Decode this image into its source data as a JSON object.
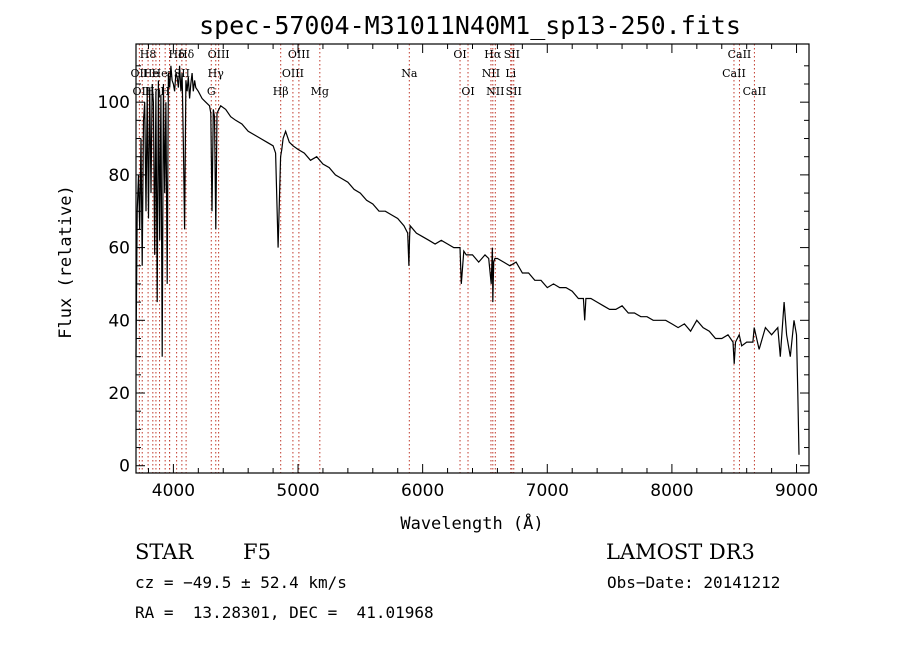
{
  "chart_data": {
    "type": "line",
    "title": "spec-57004-M31011N40M1_sp13-250.fits",
    "xlabel": "Wavelength (Å)",
    "ylabel": "Flux (relative)",
    "xlim": [
      3700,
      9100
    ],
    "ylim": [
      -2,
      116
    ],
    "xticks": [
      4000,
      5000,
      6000,
      7000,
      8000,
      9000
    ],
    "yticks": [
      0,
      20,
      40,
      60,
      80,
      100
    ],
    "series": [
      {
        "name": "spectrum",
        "color": "#000000",
        "x": [
          3700,
          3710,
          3720,
          3730,
          3740,
          3750,
          3760,
          3770,
          3780,
          3790,
          3800,
          3810,
          3820,
          3830,
          3840,
          3850,
          3860,
          3870,
          3880,
          3890,
          3900,
          3910,
          3920,
          3930,
          3940,
          3950,
          3960,
          3970,
          3980,
          3990,
          4000,
          4010,
          4020,
          4030,
          4040,
          4050,
          4060,
          4070,
          4080,
          4090,
          4100,
          4110,
          4120,
          4130,
          4140,
          4150,
          4160,
          4170,
          4180,
          4200,
          4230,
          4260,
          4290,
          4300,
          4310,
          4320,
          4330,
          4340,
          4350,
          4380,
          4420,
          4460,
          4500,
          4550,
          4600,
          4650,
          4700,
          4750,
          4800,
          4820,
          4840,
          4850,
          4860,
          4870,
          4880,
          4900,
          4930,
          4960,
          5000,
          5050,
          5100,
          5150,
          5200,
          5250,
          5300,
          5350,
          5400,
          5450,
          5500,
          5550,
          5600,
          5650,
          5700,
          5750,
          5800,
          5850,
          5880,
          5890,
          5895,
          5900,
          5950,
          6000,
          6050,
          6100,
          6150,
          6200,
          6250,
          6300,
          6310,
          6330,
          6350,
          6400,
          6450,
          6500,
          6530,
          6550,
          6560,
          6563,
          6570,
          6580,
          6600,
          6650,
          6700,
          6750,
          6800,
          6850,
          6900,
          6950,
          7000,
          7050,
          7100,
          7150,
          7200,
          7250,
          7290,
          7300,
          7310,
          7350,
          7400,
          7450,
          7500,
          7550,
          7600,
          7650,
          7700,
          7750,
          7800,
          7850,
          7900,
          7950,
          8000,
          8050,
          8100,
          8150,
          8200,
          8250,
          8300,
          8350,
          8400,
          8450,
          8490,
          8500,
          8510,
          8540,
          8560,
          8600,
          8650,
          8660,
          8700,
          8750,
          8800,
          8850,
          8870,
          8900,
          8920,
          8950,
          8980,
          9000,
          9010,
          9020
        ],
        "y": [
          30,
          70,
          80,
          65,
          90,
          55,
          95,
          100,
          70,
          102,
          68,
          104,
          75,
          105,
          100,
          58,
          103,
          45,
          106,
          62,
          102,
          30,
          105,
          75,
          100,
          50,
          108,
          104,
          110,
          106,
          105,
          103,
          108,
          107,
          104,
          110,
          103,
          108,
          88,
          65,
          106,
          103,
          107,
          101,
          105,
          108,
          103,
          106,
          104,
          103,
          101,
          100,
          99,
          97,
          70,
          98,
          96,
          65,
          97,
          99,
          98,
          96,
          95,
          94,
          92,
          91,
          90,
          89,
          88,
          86,
          60,
          72,
          85,
          87,
          90,
          92,
          89,
          88,
          87,
          86,
          84,
          85,
          83,
          82,
          80,
          79,
          78,
          76,
          75,
          73,
          72,
          70,
          70,
          69,
          68,
          66,
          64,
          55,
          63,
          66,
          64,
          63,
          62,
          61,
          62,
          61,
          60,
          60,
          50,
          59,
          58,
          58,
          56,
          58,
          57,
          50,
          60,
          45,
          56,
          57,
          57,
          56,
          55,
          56,
          53,
          53,
          51,
          51,
          49,
          50,
          49,
          49,
          48,
          46,
          46,
          40,
          46,
          46,
          45,
          44,
          43,
          43,
          44,
          42,
          42,
          41,
          41,
          40,
          40,
          40,
          39,
          38,
          39,
          37,
          40,
          38,
          37,
          35,
          35,
          36,
          34,
          28,
          34,
          36,
          33,
          34,
          34,
          38,
          32,
          38,
          36,
          38,
          30,
          45,
          36,
          30,
          40,
          36,
          20,
          3
        ]
      }
    ],
    "lines_top": [
      {
        "wl": 3934,
        "label": "K"
      },
      {
        "wl": 3969,
        "label": "H"
      },
      {
        "wl": 4102,
        "label": "Hδ"
      },
      {
        "wl": 4363,
        "label": "OIII"
      },
      {
        "wl": 4340,
        "label": "Hγ"
      },
      {
        "wl": 5007,
        "label": "OIII"
      },
      {
        "wl": 4959,
        "label": "OIII"
      },
      {
        "wl": 4861,
        "label": "Hβ"
      },
      {
        "wl": 5175,
        "label": "Mg"
      },
      {
        "wl": 5893,
        "label": "Na"
      },
      {
        "wl": 6300,
        "label": "OI"
      },
      {
        "wl": 6364,
        "label": "OI"
      },
      {
        "wl": 6563,
        "label": "Hα"
      },
      {
        "wl": 6548,
        "label": "NII"
      },
      {
        "wl": 6583,
        "label": "NII"
      },
      {
        "wl": 6716,
        "label": "SII"
      },
      {
        "wl": 6707,
        "label": "Li"
      },
      {
        "wl": 6731,
        "label": "SII"
      },
      {
        "wl": 8498,
        "label": "CaII"
      },
      {
        "wl": 8542,
        "label": "CaII"
      },
      {
        "wl": 8662,
        "label": "CaII"
      },
      {
        "wl": 3727,
        "label": "OII"
      },
      {
        "wl": 3889,
        "label": "He"
      },
      {
        "wl": 4304,
        "label": "G"
      }
    ],
    "lines_crowded": [
      {
        "wl": 3727,
        "row": 1,
        "label": "OII"
      },
      {
        "wl": 3760,
        "row": 2,
        "label": "OIII"
      },
      {
        "wl": 3797,
        "row": 0,
        "label": "H8"
      },
      {
        "wl": 3820,
        "row": 1,
        "label": "He"
      },
      {
        "wl": 3835,
        "row": 2,
        "label": "Hη"
      },
      {
        "wl": 3889,
        "row": 1,
        "label": "He"
      },
      {
        "wl": 3933,
        "row": 2,
        "label": "H"
      },
      {
        "wl": 3970,
        "row": 1,
        "label": "ε"
      },
      {
        "wl": 4026,
        "row": 0,
        "label": "Hδ"
      },
      {
        "wl": 4068,
        "row": 1,
        "label": "SII"
      }
    ]
  },
  "info": {
    "object_type": "STAR",
    "subclass": "F5",
    "survey": "LAMOST DR3",
    "cz": "cz = −49.5 ± 52.4 km/s",
    "obs_date": "Obs−Date: 20141212",
    "radec": "RA =  13.28301, DEC =  41.01968"
  }
}
